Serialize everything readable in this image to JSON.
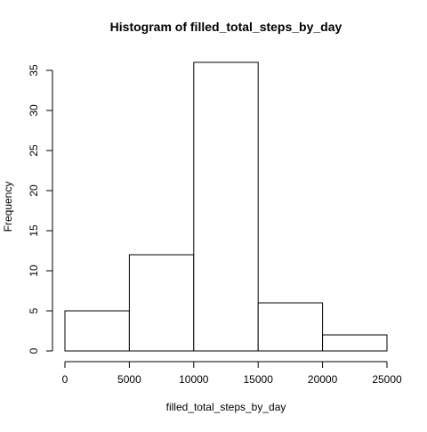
{
  "chart_data": {
    "type": "bar",
    "title": "Histogram of filled_total_steps_by_day",
    "xlabel": "filled_total_steps_by_day",
    "ylabel": "Frequency",
    "bins": [
      {
        "start": 0,
        "end": 5000,
        "count": 5
      },
      {
        "start": 5000,
        "end": 10000,
        "count": 12
      },
      {
        "start": 10000,
        "end": 15000,
        "count": 36
      },
      {
        "start": 15000,
        "end": 20000,
        "count": 6
      },
      {
        "start": 20000,
        "end": 25000,
        "count": 2
      }
    ],
    "xlim": [
      0,
      25000
    ],
    "ylim": [
      0,
      36
    ],
    "x_ticks": [
      0,
      5000,
      10000,
      15000,
      20000,
      25000
    ],
    "y_ticks": [
      0,
      5,
      10,
      15,
      20,
      25,
      30,
      35
    ],
    "grid": false,
    "bar_fill": "#ffffff",
    "bar_stroke": "#000000"
  }
}
